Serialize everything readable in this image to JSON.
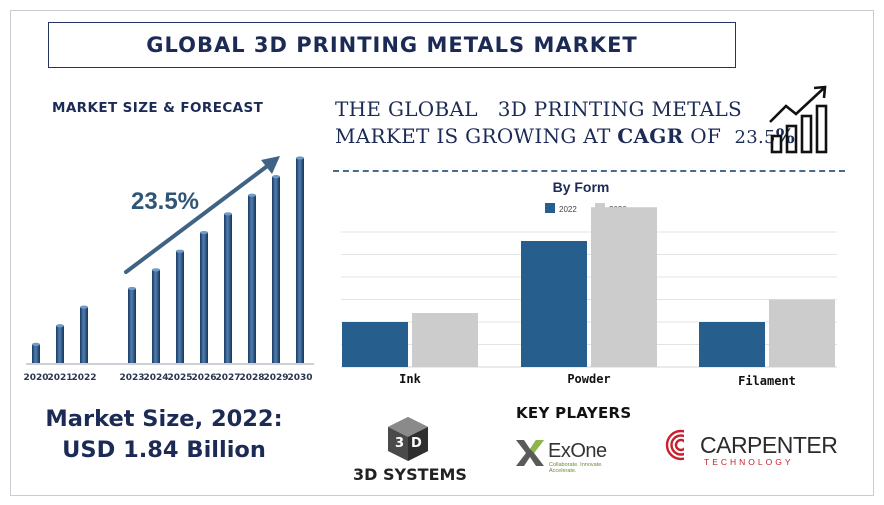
{
  "title": "GLOBAL 3D PRINTING METALS MARKET",
  "forecast_title": "MARKET SIZE & FORECAST",
  "growth_statement": {
    "line1": "THE GLOBAL   3D PRINTING METALS",
    "line2_prefix": "MARKET IS GROWING AT ",
    "cagr_word": "CAGR",
    "of_word": " OF  ",
    "cagr_value": "23.5",
    "percent": "%"
  },
  "market_size": {
    "line1": "Market Size, 2022:",
    "line2": "USD 1.84 Billion"
  },
  "key_players": {
    "title": "KEY PLAYERS",
    "logos": [
      {
        "name": "3D SYSTEMS"
      },
      {
        "name": "ExOne",
        "tagline": "Collaborate. Innovate. Accelerate."
      },
      {
        "name": "CARPENTER",
        "subtitle": "TECHNOLOGY"
      }
    ]
  },
  "colors": {
    "navy": "#1c2b55",
    "bar_blue": "#265e8e",
    "bar_gray": "#cccccc",
    "arrow": "#3f6384"
  },
  "icons": {
    "growth": "bar-chart-growth-icon",
    "arrow": "trend-arrow-icon"
  },
  "chart_data": [
    {
      "type": "bar",
      "title": "",
      "annotation": "23.5%",
      "categories": [
        "2020",
        "2021",
        "2022",
        "2023",
        "2024",
        "2025",
        "2026",
        "2027",
        "2028",
        "2029",
        "2030"
      ],
      "values": [
        0.5,
        1.0,
        1.5,
        2.0,
        2.5,
        3.0,
        3.5,
        4.0,
        4.5,
        5.0,
        5.5
      ],
      "ylim": [
        0,
        5.5
      ],
      "grid": false,
      "legend": "none"
    },
    {
      "type": "bar",
      "title": "By Form",
      "categories": [
        "Ink",
        "Powder",
        "Filament"
      ],
      "series": [
        {
          "name": "2022",
          "values": [
            20,
            56,
            20
          ]
        },
        {
          "name": "2030",
          "values": [
            24,
            71,
            30
          ]
        }
      ],
      "ylim": [
        0,
        80
      ],
      "grid": true,
      "legend": "top-center"
    }
  ]
}
